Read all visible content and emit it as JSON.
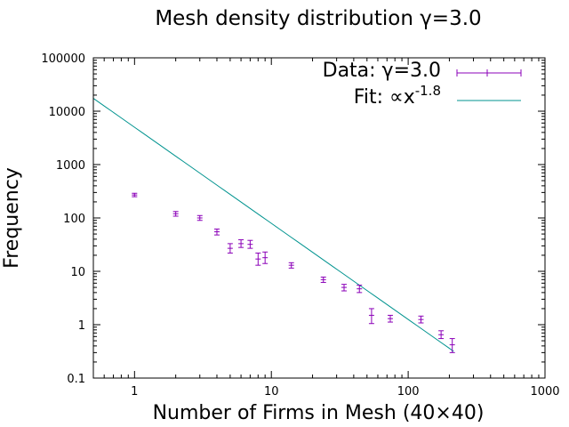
{
  "chart_data": {
    "type": "scatter",
    "title": "Mesh density distribution γ=3.0",
    "xlabel": "Number of Firms in Mesh (40×40)",
    "ylabel": "Frequency",
    "xscale": "log",
    "yscale": "log",
    "xlim": [
      0.5,
      1000
    ],
    "ylim": [
      0.1,
      100000
    ],
    "x_ticks": [
      "1",
      "10",
      "100",
      "1000"
    ],
    "y_ticks": [
      "0.1",
      "1",
      "10",
      "100",
      "1000",
      "10000",
      "100000"
    ],
    "grid": false,
    "legend_position": "top-right",
    "series": [
      {
        "name": "Data: γ=3.0",
        "style": "errorbars",
        "color": "#8b00b8",
        "points": [
          {
            "x": 1,
            "y": 270,
            "ylow": 250,
            "yhigh": 290
          },
          {
            "x": 2,
            "y": 120,
            "ylow": 108,
            "yhigh": 132
          },
          {
            "x": 3,
            "y": 100,
            "ylow": 90,
            "yhigh": 111
          },
          {
            "x": 4,
            "y": 55,
            "ylow": 48,
            "yhigh": 62
          },
          {
            "x": 5,
            "y": 27,
            "ylow": 22,
            "yhigh": 33
          },
          {
            "x": 6,
            "y": 33,
            "ylow": 28,
            "yhigh": 39
          },
          {
            "x": 7,
            "y": 32,
            "ylow": 27,
            "yhigh": 38
          },
          {
            "x": 8,
            "y": 17,
            "ylow": 13,
            "yhigh": 22
          },
          {
            "x": 9,
            "y": 18,
            "ylow": 14,
            "yhigh": 23
          },
          {
            "x": 14,
            "y": 13,
            "ylow": 11.5,
            "yhigh": 14.5
          },
          {
            "x": 24,
            "y": 7,
            "ylow": 6.2,
            "yhigh": 7.8
          },
          {
            "x": 34,
            "y": 5,
            "ylow": 4.3,
            "yhigh": 5.7
          },
          {
            "x": 44,
            "y": 4.7,
            "ylow": 4.0,
            "yhigh": 5.5
          },
          {
            "x": 54,
            "y": 1.5,
            "ylow": 1.05,
            "yhigh": 2.0
          },
          {
            "x": 74,
            "y": 1.3,
            "ylow": 1.12,
            "yhigh": 1.5
          },
          {
            "x": 124,
            "y": 1.25,
            "ylow": 1.08,
            "yhigh": 1.45
          },
          {
            "x": 174,
            "y": 0.65,
            "ylow": 0.55,
            "yhigh": 0.77
          },
          {
            "x": 210,
            "y": 0.42,
            "ylow": 0.3,
            "yhigh": 0.55
          }
        ]
      },
      {
        "name": "Fit: ∝x^-1.8",
        "style": "line",
        "color": "#00938f",
        "power": -1.8,
        "coefficient": 5000,
        "x_range": [
          0.5,
          215
        ]
      }
    ]
  }
}
